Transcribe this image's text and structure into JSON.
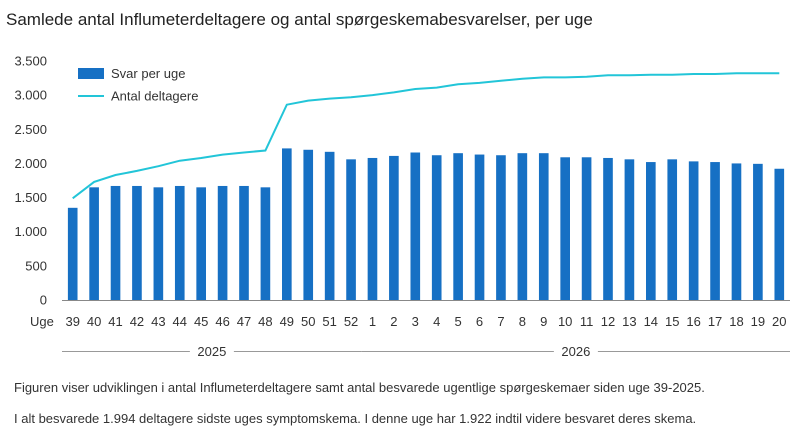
{
  "chart_data": {
    "type": "bar",
    "title": "Samlede antal Influmeterdeltagere og antal spørgeskemabesvarelser, per uge",
    "x_axis_prefix": "Uge",
    "categories": [
      "39",
      "40",
      "41",
      "42",
      "43",
      "44",
      "45",
      "46",
      "47",
      "48",
      "49",
      "50",
      "51",
      "52",
      "1",
      "2",
      "3",
      "4",
      "5",
      "6",
      "7",
      "8",
      "9",
      "10",
      "11",
      "12",
      "13",
      "14",
      "15",
      "16",
      "17",
      "18",
      "19",
      "20"
    ],
    "year_groups": [
      {
        "label": "2025",
        "from": "39",
        "to": "52"
      },
      {
        "label": "2026",
        "from": "1",
        "to": "20"
      }
    ],
    "ylim": [
      0,
      3500
    ],
    "yticks": [
      0,
      500,
      1000,
      1500,
      2000,
      2500,
      3000,
      3500
    ],
    "ytick_labels": [
      "0",
      "500",
      "1.000",
      "1.500",
      "2.000",
      "2.500",
      "3.000",
      "3.500"
    ],
    "grid": false,
    "legend_position": "top-left",
    "series": [
      {
        "name": "Svar per uge",
        "kind": "bar",
        "color": "#1670c4",
        "values": [
          1350,
          1650,
          1670,
          1670,
          1650,
          1670,
          1650,
          1670,
          1670,
          1650,
          2220,
          2200,
          2170,
          2060,
          2080,
          2110,
          2160,
          2120,
          2150,
          2130,
          2120,
          2150,
          2150,
          2090,
          2090,
          2080,
          2060,
          2020,
          2060,
          2030,
          2020,
          2000,
          1994,
          1922
        ]
      },
      {
        "name": "Antal deltagere",
        "kind": "line",
        "color": "#22c5d8",
        "values": [
          1490,
          1730,
          1830,
          1890,
          1960,
          2040,
          2080,
          2130,
          2160,
          2190,
          2860,
          2920,
          2950,
          2970,
          3000,
          3040,
          3090,
          3110,
          3160,
          3180,
          3210,
          3240,
          3260,
          3260,
          3270,
          3290,
          3290,
          3300,
          3300,
          3310,
          3310,
          3320,
          3320,
          3320
        ]
      }
    ]
  },
  "notes": [
    "Figuren viser udviklingen i antal Influmeterdeltagere  samt antal besvarede ugentlige spørgeskemaer siden uge 39-2025.",
    "I alt besvarede 1.994 deltagere sidste uges symptomskema.  I denne uge har 1.922 indtil videre besvaret deres skema."
  ]
}
